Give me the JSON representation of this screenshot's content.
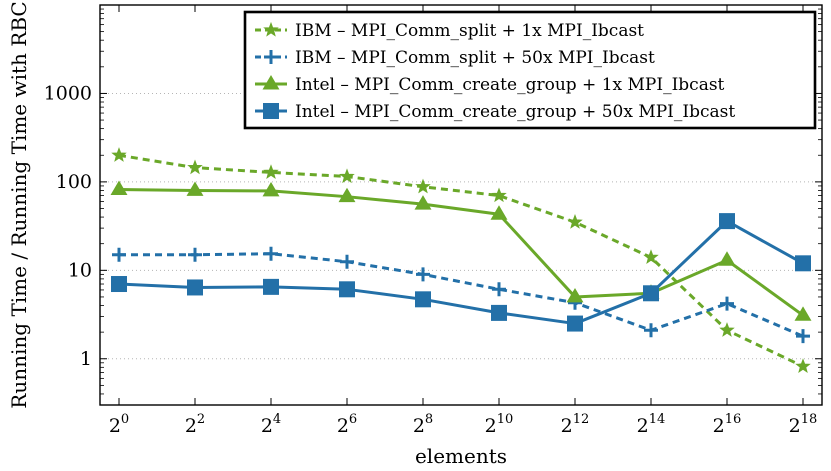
{
  "chart_data": {
    "type": "line",
    "xlabel": "elements",
    "ylabel": "Running Time / Running Time with RBC",
    "x_tick_labels": [
      {
        "base": "2",
        "exp": "0"
      },
      {
        "base": "2",
        "exp": "2"
      },
      {
        "base": "2",
        "exp": "4"
      },
      {
        "base": "2",
        "exp": "6"
      },
      {
        "base": "2",
        "exp": "8"
      },
      {
        "base": "2",
        "exp": "10"
      },
      {
        "base": "2",
        "exp": "12"
      },
      {
        "base": "2",
        "exp": "14"
      },
      {
        "base": "2",
        "exp": "16"
      },
      {
        "base": "2",
        "exp": "18"
      }
    ],
    "x_log2": [
      0,
      2,
      4,
      6,
      8,
      10,
      12,
      14,
      16,
      18
    ],
    "xlim_log2": [
      -0.5,
      18.5
    ],
    "y_scale": "log",
    "ylim": [
      0.3,
      10000
    ],
    "y_ticks": [
      1,
      10,
      100,
      1000
    ],
    "y_tick_labels": [
      "1",
      "10",
      "100",
      "1000"
    ],
    "grid": "horizontal-dotted",
    "legend_position": "top-right",
    "series": [
      {
        "name": "IBM – MPI_Comm_split + 1x MPI_Ibcast",
        "color": "#6aa829",
        "line": "dashed",
        "marker": "star",
        "values": [
          200,
          145,
          128,
          115,
          88,
          70,
          35,
          14,
          2.1,
          0.82
        ]
      },
      {
        "name": "IBM – MPI_Comm_split + 50x MPI_Ibcast",
        "color": "#2370a8",
        "line": "dashed",
        "marker": "plus",
        "values": [
          15,
          15,
          15.4,
          12.5,
          9,
          6.1,
          4.3,
          2.1,
          4.2,
          1.8
        ]
      },
      {
        "name": "Intel – MPI_Comm_create_group + 1x MPI_Ibcast",
        "color": "#6aa829",
        "line": "solid",
        "marker": "triangle",
        "values": [
          82,
          80,
          79,
          68,
          56,
          43,
          5,
          5.5,
          13,
          3.1
        ]
      },
      {
        "name": "Intel – MPI_Comm_create_group + 50x MPI_Ibcast",
        "color": "#2370a8",
        "line": "solid",
        "marker": "square",
        "values": [
          7,
          6.4,
          6.5,
          6.1,
          4.7,
          3.3,
          2.5,
          5.5,
          36,
          12
        ]
      }
    ]
  }
}
